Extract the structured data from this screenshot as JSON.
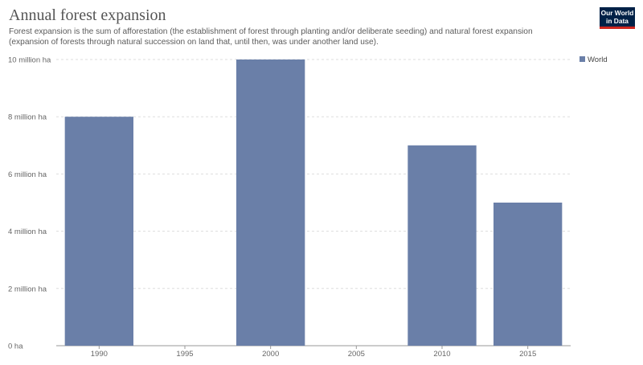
{
  "header": {
    "title": "Annual forest expansion",
    "subtitle": "Forest expansion is the sum of afforestation (the establishment of forest through planting and/or deliberate seeding) and natural forest expansion (expansion of forests through natural succession on land that, until then, was under another land use).",
    "logo_line1": "Our World",
    "logo_line2": "in Data"
  },
  "colors": {
    "bar": "#6a7fa8",
    "grid": "#dddddd",
    "axis": "#999999",
    "logo_bg": "#002147",
    "logo_accent": "#ce261e"
  },
  "chart_data": {
    "type": "bar",
    "title": "Annual forest expansion",
    "categories": [
      "1990",
      "1995",
      "2000",
      "2005",
      "2010",
      "2015"
    ],
    "series": [
      {
        "name": "World",
        "values": [
          8000000,
          null,
          10000000,
          null,
          7000000,
          5000000
        ]
      }
    ],
    "ylim": [
      0,
      10000000
    ],
    "yticks": [
      0,
      2000000,
      4000000,
      6000000,
      8000000,
      10000000
    ],
    "ytick_labels": [
      "0 ha",
      "2 million ha",
      "4 million ha",
      "6 million ha",
      "8 million ha",
      "10 million ha"
    ],
    "grid": true,
    "legend": "top-right"
  }
}
